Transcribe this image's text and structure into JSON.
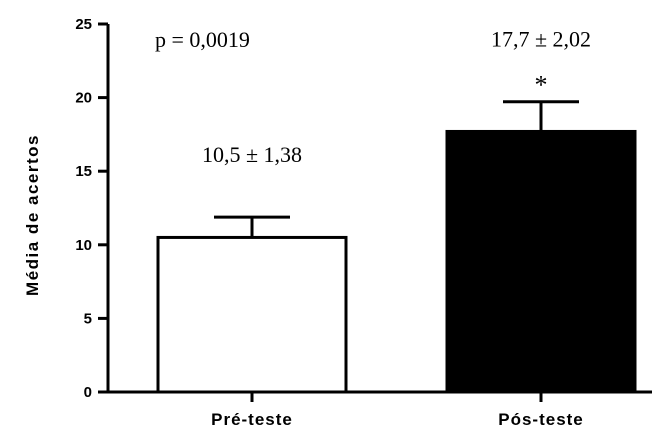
{
  "chart_data": {
    "type": "bar",
    "categories": [
      "Pré-teste",
      "Pós-teste"
    ],
    "values": [
      10.5,
      17.7
    ],
    "errors": [
      1.38,
      2.02
    ],
    "bar_colors": [
      "#ffffff",
      "#000000"
    ],
    "ylabel": "Média de acertos",
    "xlabel": "",
    "ylim": [
      0,
      25
    ],
    "yticks": [
      0,
      5,
      10,
      15,
      20,
      25
    ],
    "grid": false,
    "annotations": {
      "p_value": "p = 0,0019",
      "bar_labels": [
        "10,5 ± 1,38",
        "17,7 ± 2,02"
      ],
      "significance_marker": "*"
    }
  }
}
